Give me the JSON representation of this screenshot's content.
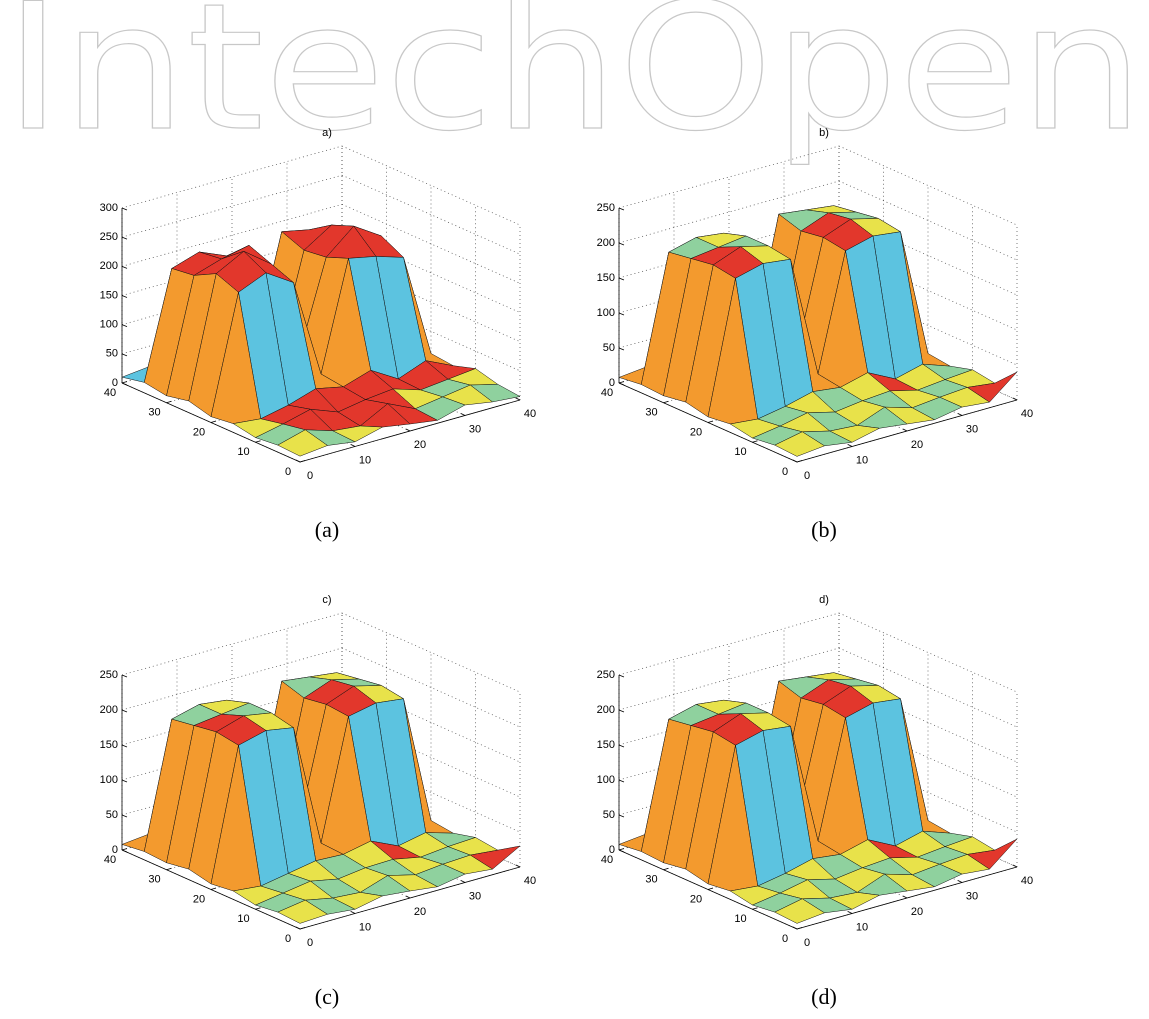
{
  "watermark": "IntechOpen",
  "chart_data": [
    {
      "type": "surface",
      "title": "a)",
      "caption": "(a)",
      "x": [
        0,
        5,
        10,
        15,
        20,
        25,
        30,
        35,
        40
      ],
      "y": [
        0,
        5,
        10,
        15,
        20,
        25,
        30,
        35,
        40
      ],
      "z": [
        [
          10,
          15,
          8,
          20,
          12,
          5,
          18,
          10,
          6
        ],
        [
          12,
          25,
          10,
          5,
          30,
          8,
          15,
          22,
          10
        ],
        [
          8,
          18,
          30,
          12,
          20,
          25,
          10,
          15,
          20
        ],
        [
          15,
          10,
          20,
          35,
          25,
          40,
          12,
          30,
          8
        ],
        [
          10,
          210,
          230,
          200,
          30,
          215,
          205,
          190,
          12
        ],
        [
          20,
          225,
          250,
          215,
          45,
          200,
          240,
          210,
          15
        ],
        [
          12,
          205,
          220,
          230,
          20,
          195,
          225,
          205,
          10
        ],
        [
          18,
          200,
          215,
          195,
          25,
          210,
          200,
          185,
          20
        ],
        [
          10,
          15,
          20,
          12,
          8,
          18,
          10,
          22,
          15
        ]
      ],
      "xlim": [
        0,
        40
      ],
      "ylim": [
        0,
        40
      ],
      "zlim": [
        0,
        300
      ],
      "xticks": [
        0,
        10,
        20,
        30,
        40
      ],
      "yticks": [
        0,
        10,
        20,
        30,
        40
      ],
      "zticks": [
        0,
        50,
        100,
        150,
        200,
        250,
        300
      ],
      "grid": true,
      "colors": [
        "#5cc3e0",
        "#f39a2e",
        "#e8e24a",
        "#8fd19e",
        "#e2372c"
      ]
    },
    {
      "type": "surface",
      "title": "b)",
      "caption": "(b)",
      "x": [
        0,
        5,
        10,
        15,
        20,
        25,
        30,
        35,
        40
      ],
      "y": [
        0,
        5,
        10,
        15,
        20,
        25,
        30,
        35,
        40
      ],
      "z": [
        [
          8,
          12,
          6,
          15,
          10,
          5,
          12,
          8,
          40
        ],
        [
          10,
          18,
          8,
          5,
          20,
          8,
          12,
          15,
          10
        ],
        [
          6,
          12,
          20,
          10,
          15,
          18,
          8,
          12,
          15
        ],
        [
          12,
          8,
          15,
          25,
          20,
          30,
          10,
          20,
          6
        ],
        [
          8,
          195,
          205,
          200,
          25,
          190,
          200,
          195,
          10
        ],
        [
          15,
          200,
          215,
          205,
          35,
          195,
          210,
          200,
          12
        ],
        [
          10,
          195,
          200,
          205,
          15,
          190,
          205,
          195,
          8
        ],
        [
          12,
          190,
          200,
          195,
          20,
          200,
          195,
          190,
          15
        ],
        [
          8,
          12,
          15,
          10,
          6,
          12,
          8,
          15,
          10
        ]
      ],
      "xlim": [
        0,
        40
      ],
      "ylim": [
        0,
        40
      ],
      "zlim": [
        0,
        250
      ],
      "xticks": [
        0,
        10,
        20,
        30,
        40
      ],
      "yticks": [
        0,
        10,
        20,
        30,
        40
      ],
      "zticks": [
        0,
        50,
        100,
        150,
        200,
        250
      ],
      "grid": true,
      "colors": [
        "#5cc3e0",
        "#f39a2e",
        "#e8e24a",
        "#8fd19e",
        "#e2372c"
      ]
    },
    {
      "type": "surface",
      "title": "c)",
      "caption": "(c)",
      "x": [
        0,
        5,
        10,
        15,
        20,
        25,
        30,
        35,
        40
      ],
      "y": [
        0,
        5,
        10,
        15,
        20,
        25,
        30,
        35,
        40
      ],
      "z": [
        [
          8,
          10,
          6,
          14,
          10,
          5,
          12,
          8,
          30
        ],
        [
          10,
          16,
          8,
          5,
          18,
          8,
          12,
          14,
          10
        ],
        [
          6,
          12,
          18,
          10,
          15,
          16,
          8,
          12,
          14
        ],
        [
          12,
          8,
          15,
          22,
          20,
          28,
          10,
          18,
          6
        ],
        [
          8,
          195,
          205,
          198,
          22,
          192,
          200,
          195,
          10
        ],
        [
          15,
          200,
          212,
          205,
          32,
          195,
          210,
          200,
          12
        ],
        [
          10,
          195,
          200,
          205,
          15,
          190,
          205,
          195,
          8
        ],
        [
          12,
          190,
          200,
          195,
          20,
          200,
          195,
          190,
          15
        ],
        [
          8,
          12,
          15,
          10,
          6,
          12,
          8,
          15,
          10
        ]
      ],
      "xlim": [
        0,
        40
      ],
      "ylim": [
        0,
        40
      ],
      "zlim": [
        0,
        250
      ],
      "xticks": [
        0,
        10,
        20,
        30,
        40
      ],
      "yticks": [
        0,
        10,
        20,
        30,
        40
      ],
      "zticks": [
        0,
        50,
        100,
        150,
        200,
        250
      ],
      "grid": true,
      "colors": [
        "#5cc3e0",
        "#f39a2e",
        "#e8e24a",
        "#8fd19e",
        "#e2372c"
      ]
    },
    {
      "type": "surface",
      "title": "d)",
      "caption": "(d)",
      "x": [
        0,
        5,
        10,
        15,
        20,
        25,
        30,
        35,
        40
      ],
      "y": [
        0,
        5,
        10,
        15,
        20,
        25,
        30,
        35,
        40
      ],
      "z": [
        [
          8,
          12,
          6,
          15,
          10,
          5,
          12,
          8,
          40
        ],
        [
          10,
          18,
          8,
          5,
          20,
          8,
          12,
          15,
          10
        ],
        [
          6,
          12,
          20,
          10,
          15,
          18,
          8,
          12,
          15
        ],
        [
          12,
          8,
          15,
          25,
          20,
          30,
          10,
          20,
          6
        ],
        [
          8,
          195,
          205,
          200,
          25,
          190,
          200,
          195,
          10
        ],
        [
          15,
          200,
          215,
          205,
          35,
          195,
          210,
          200,
          12
        ],
        [
          10,
          195,
          200,
          205,
          15,
          190,
          205,
          195,
          8
        ],
        [
          12,
          190,
          200,
          195,
          20,
          200,
          195,
          190,
          15
        ],
        [
          8,
          12,
          15,
          10,
          6,
          12,
          8,
          15,
          10
        ]
      ],
      "xlim": [
        0,
        40
      ],
      "ylim": [
        0,
        40
      ],
      "zlim": [
        0,
        250
      ],
      "xticks": [
        0,
        10,
        20,
        30,
        40
      ],
      "yticks": [
        0,
        10,
        20,
        30,
        40
      ],
      "zticks": [
        0,
        50,
        100,
        150,
        200,
        250
      ],
      "grid": true,
      "colors": [
        "#5cc3e0",
        "#f39a2e",
        "#e8e24a",
        "#8fd19e",
        "#e2372c"
      ]
    }
  ]
}
